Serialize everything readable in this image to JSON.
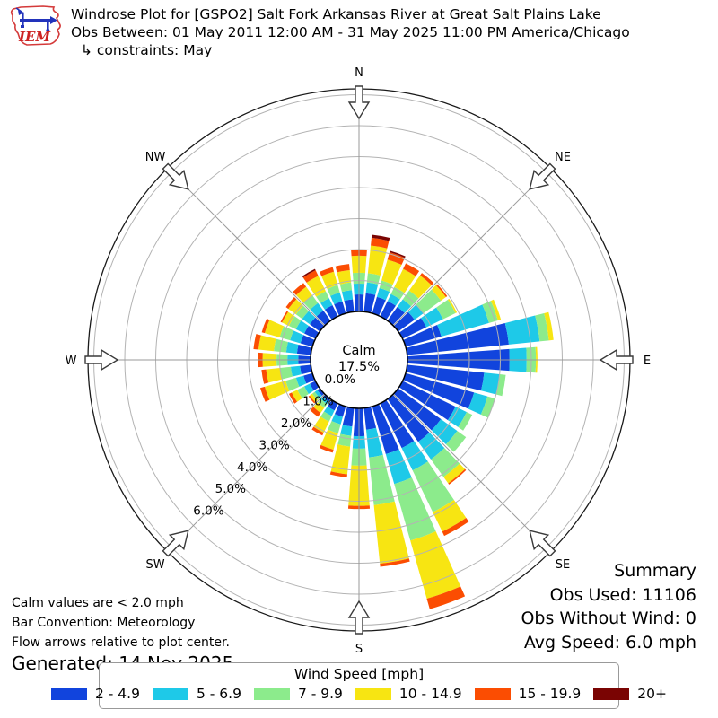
{
  "header": {
    "title_line1": "Windrose Plot for [GSPO2] Salt Fork Arkansas River at Great Salt Plains Lake",
    "title_line2": "Obs Between: 01 May 2011 12:00 AM - 31 May 2025 11:00 PM America/Chicago",
    "title_line3": "↳ constraints: May",
    "logo_text": "IEM"
  },
  "plot": {
    "compass_labels": [
      "N",
      "NE",
      "E",
      "SE",
      "S",
      "SW",
      "W",
      "NW"
    ],
    "ring_labels": [
      "0.0%",
      "1.0%",
      "2.0%",
      "3.0%",
      "4.0%",
      "5.0%",
      "6.0%"
    ],
    "center_label": {
      "line1": "Calm",
      "line2": "17.5%"
    }
  },
  "chart_data": {
    "type": "windrose",
    "title": "Windrose Plot for [GSPO2] Salt Fork Arkansas River at Great Salt Plains Lake",
    "units": "percent frequency of observations",
    "calm_percent": 17.5,
    "ring_ticks_percent": [
      0,
      1,
      2,
      3,
      4,
      5,
      6
    ],
    "ring_max_percent": 7,
    "directions_deg": [
      0,
      10,
      20,
      30,
      40,
      50,
      60,
      70,
      80,
      90,
      100,
      110,
      120,
      130,
      140,
      150,
      160,
      170,
      180,
      190,
      200,
      210,
      220,
      230,
      240,
      250,
      260,
      270,
      280,
      290,
      300,
      310,
      320,
      330,
      340,
      350
    ],
    "series": [
      {
        "name": "2 - 4.9",
        "color": "#1144dd",
        "values": [
          0.55,
          0.6,
          0.55,
          0.55,
          0.55,
          0.65,
          0.85,
          1.2,
          3.3,
          3.3,
          2.5,
          2.3,
          1.9,
          1.7,
          1.7,
          1.6,
          1.6,
          0.7,
          0.9,
          0.6,
          0.35,
          0.25,
          0.1,
          0.1,
          0.2,
          0.3,
          0.35,
          0.4,
          0.45,
          0.4,
          0.4,
          0.4,
          0.4,
          0.4,
          0.4,
          0.4
        ]
      },
      {
        "name": "5 - 6.9",
        "color": "#1ec9e8",
        "values": [
          0.35,
          0.35,
          0.3,
          0.25,
          0.3,
          0.35,
          0.6,
          1.6,
          1.0,
          0.55,
          0.5,
          0.45,
          0.4,
          0.65,
          0.7,
          0.8,
          1.0,
          0.9,
          0.4,
          0.3,
          0.25,
          0.2,
          0.1,
          0.1,
          0.2,
          0.25,
          0.3,
          0.35,
          0.35,
          0.35,
          0.3,
          0.3,
          0.3,
          0.25,
          0.3,
          0.3
        ]
      },
      {
        "name": "7 - 9.9",
        "color": "#8ceb8c",
        "values": [
          0.35,
          0.3,
          0.25,
          0.25,
          0.35,
          0.7,
          0.45,
          0.3,
          0.3,
          0.3,
          0.2,
          0.25,
          0.2,
          0.35,
          0.7,
          1.5,
          1.9,
          1.55,
          0.55,
          0.35,
          0.3,
          0.2,
          0.15,
          0.1,
          0.25,
          0.35,
          0.35,
          0.35,
          0.4,
          0.35,
          0.25,
          0.25,
          0.3,
          0.25,
          0.25,
          0.25
        ]
      },
      {
        "name": "10 - 14.9",
        "color": "#f7e512",
        "values": [
          0.55,
          0.9,
          0.7,
          0.65,
          0.6,
          0.2,
          0.05,
          0.1,
          0.15,
          0.05,
          0.0,
          0.0,
          0.0,
          0.0,
          0.25,
          0.7,
          1.95,
          1.9,
          1.3,
          0.9,
          0.55,
          0.4,
          0.2,
          0.1,
          0.2,
          0.7,
          0.45,
          0.45,
          0.5,
          0.5,
          0.25,
          0.3,
          0.35,
          0.55,
          0.45,
          0.4
        ]
      },
      {
        "name": "15 - 19.9",
        "color": "#fb4d02",
        "values": [
          0.2,
          0.25,
          0.25,
          0.2,
          0.1,
          0.05,
          0.0,
          0.0,
          0.0,
          0.0,
          0.0,
          0.0,
          0.0,
          0.0,
          0.05,
          0.15,
          0.35,
          0.1,
          0.1,
          0.1,
          0.1,
          0.1,
          0.15,
          0.05,
          0.1,
          0.15,
          0.15,
          0.15,
          0.16,
          0.1,
          0.05,
          0.1,
          0.15,
          0.2,
          0.15,
          0.2
        ]
      },
      {
        "name": "20+",
        "color": "#7a0403",
        "values": [
          0.0,
          0.1,
          0.05,
          0.0,
          0.0,
          0.0,
          0.0,
          0.0,
          0.0,
          0.0,
          0.0,
          0.0,
          0.0,
          0.0,
          0.0,
          0.0,
          0.0,
          0.0,
          0.0,
          0.0,
          0.0,
          0.0,
          0.0,
          0.0,
          0.0,
          0.0,
          0.0,
          0.0,
          0.0,
          0.0,
          0.0,
          0.0,
          0.0,
          0.05,
          0.0,
          0.0
        ]
      }
    ]
  },
  "legend": {
    "title": "Wind Speed [mph]",
    "items": [
      {
        "label": "2 - 4.9",
        "color": "#1144dd"
      },
      {
        "label": "5 - 6.9",
        "color": "#1ec9e8"
      },
      {
        "label": "7 - 9.9",
        "color": "#8ceb8c"
      },
      {
        "label": "10 - 14.9",
        "color": "#f7e512"
      },
      {
        "label": "15 - 19.9",
        "color": "#fb4d02"
      },
      {
        "label": "20+",
        "color": "#7a0403"
      }
    ]
  },
  "summary": {
    "title": "Summary",
    "obs_used": "Obs Used: 11106",
    "obs_without_wind": "Obs Without Wind: 0",
    "avg_speed": "Avg Speed: 6.0 mph"
  },
  "notes": {
    "line1": "Calm values are < 2.0 mph",
    "line2": "Bar Convention: Meteorology",
    "line3": "Flow arrows relative to plot center.",
    "generated": "Generated: 14 Nov 2025"
  }
}
